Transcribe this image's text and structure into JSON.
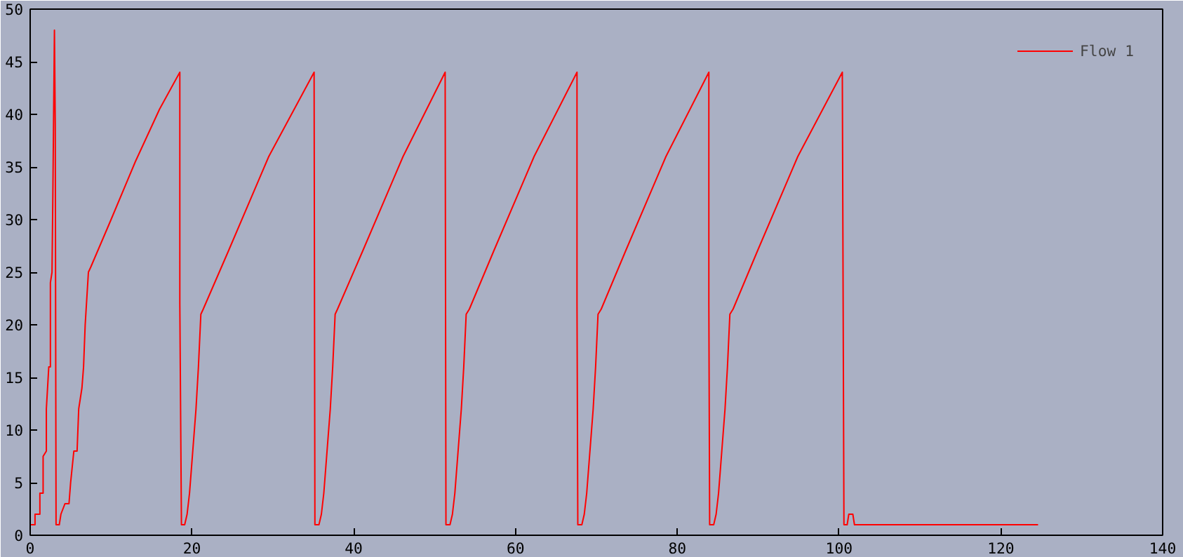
{
  "chart_data": {
    "type": "line",
    "xlim": [
      0,
      140
    ],
    "ylim": [
      0,
      50
    ],
    "xticks": [
      0,
      20,
      40,
      60,
      80,
      100,
      120,
      140
    ],
    "yticks": [
      0,
      5,
      10,
      15,
      20,
      25,
      30,
      35,
      40,
      45,
      50
    ],
    "grid": false,
    "legend": "top right",
    "marker": "none",
    "line_style": "solid",
    "series": [
      {
        "name": "Flow 1",
        "color": "#ff0000",
        "x": [
          0,
          0.6,
          0.6,
          1.2,
          1.2,
          1.6,
          1.6,
          2.0,
          2.0,
          2.3,
          2.5,
          2.5,
          2.7,
          2.8,
          3.0,
          3.1,
          3.2,
          3.6,
          3.8,
          4.3,
          4.8,
          5.0,
          5.4,
          5.8,
          6.0,
          6.4,
          6.6,
          6.8,
          7.2,
          7.5,
          10,
          13,
          16,
          18.5,
          18.5,
          18.7,
          19.1,
          19.4,
          19.7,
          20.1,
          20.5,
          20.8,
          21.1,
          21.4,
          24.5,
          29.5,
          35.1,
          35.2,
          35.7,
          36.0,
          36.3,
          36.7,
          37.1,
          37.4,
          37.7,
          38.0,
          41.1,
          46.1,
          51.3,
          51.4,
          51.9,
          52.2,
          52.5,
          52.9,
          53.3,
          53.6,
          53.9,
          54.3,
          57.3,
          62.3,
          67.6,
          67.6,
          67.7,
          68.2,
          68.5,
          68.8,
          69.2,
          69.6,
          69.9,
          70.2,
          70.6,
          73.6,
          78.6,
          83.9,
          83.9,
          84.0,
          84.5,
          84.8,
          85.1,
          85.5,
          85.9,
          86.2,
          86.5,
          86.9,
          89.9,
          94.9,
          100.4,
          100.6,
          101.0,
          101.2,
          101.7,
          101.9,
          124.6
        ],
        "values": [
          1,
          1,
          2,
          2,
          4,
          4,
          7.5,
          8,
          12,
          16,
          16,
          24,
          25,
          32,
          48,
          39,
          1,
          1,
          2,
          3,
          3,
          5,
          8,
          8,
          12,
          14,
          16,
          20,
          25,
          25.5,
          30,
          35.5,
          40.5,
          44,
          22,
          1,
          1,
          2,
          4,
          8,
          12,
          16,
          21,
          21.5,
          27,
          36,
          44,
          1,
          1,
          2,
          4,
          8,
          12,
          16,
          21,
          21.5,
          27,
          36,
          44,
          1,
          1,
          2,
          4,
          8,
          12,
          16,
          21,
          21.5,
          27,
          36,
          44,
          22,
          1,
          1,
          2,
          4,
          8,
          12,
          16,
          21,
          21.5,
          27,
          36,
          44,
          22,
          1,
          1,
          2,
          4,
          8,
          12,
          16,
          21,
          21.5,
          27,
          36,
          44,
          1,
          1,
          2,
          2,
          1,
          1
        ]
      }
    ]
  }
}
